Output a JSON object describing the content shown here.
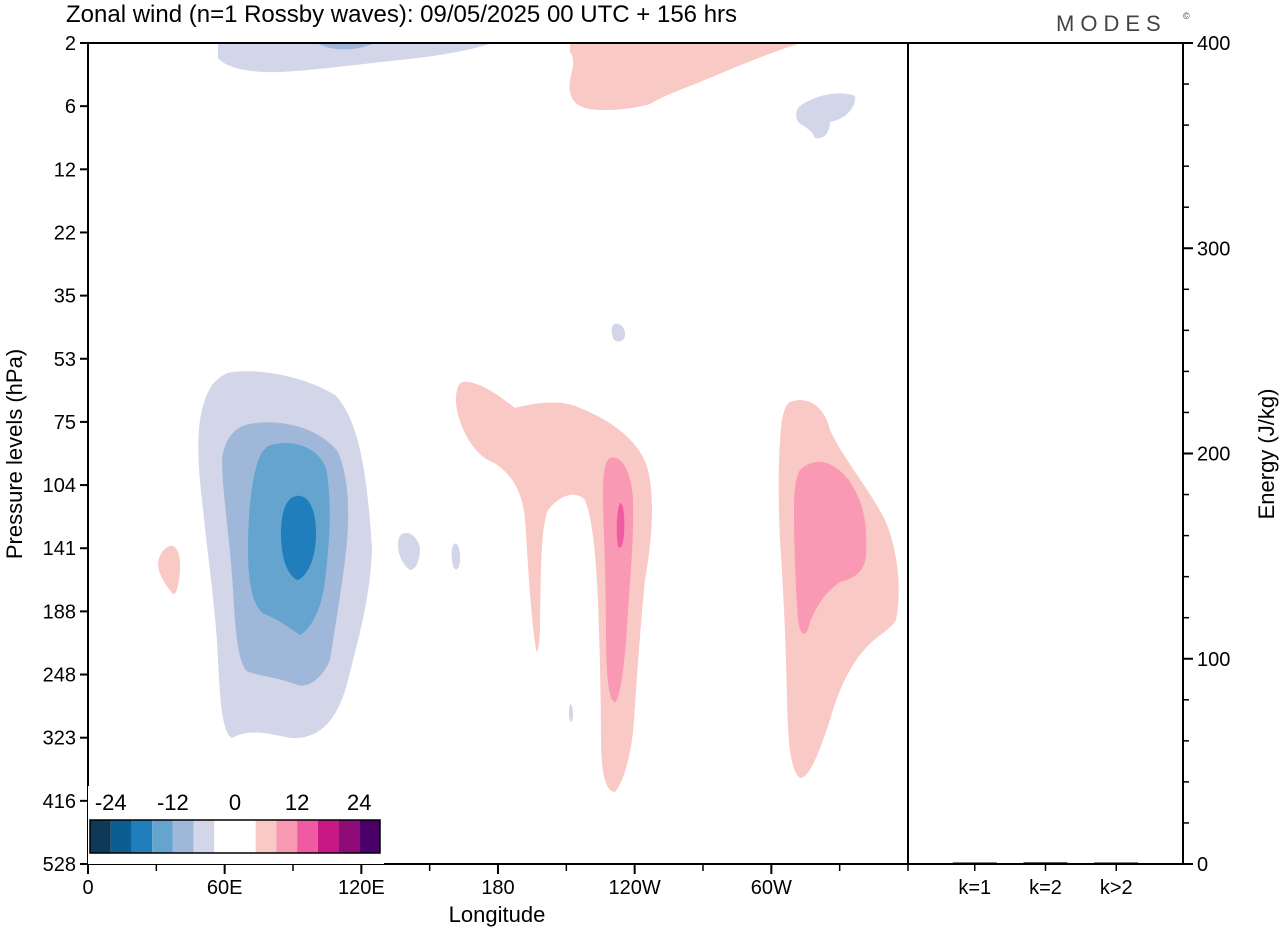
{
  "header": {
    "title": "Zonal wind (n=1 Rossby waves):  09/05/2025  00 UTC  + 156 hrs",
    "logo": "MODES",
    "logo_mark": "©"
  },
  "chart_data": [
    {
      "type": "heatmap",
      "title": "Zonal wind (n=1 Rossby waves):  09/05/2025  00 UTC  + 156 hrs",
      "xlabel": "Longitude",
      "ylabel": "Pressure levels (hPa)",
      "x_ticks": [
        "0",
        "60E",
        "120E",
        "180",
        "120W",
        "60W"
      ],
      "x_tick_values": [
        0,
        60,
        120,
        180,
        240,
        300
      ],
      "xlim": [
        0,
        360
      ],
      "y_ticks": [
        "2",
        "6",
        "12",
        "22",
        "35",
        "53",
        "75",
        "104",
        "141",
        "188",
        "248",
        "323",
        "416",
        "528"
      ],
      "y_scale": "model levels (non-linear)",
      "colorbar": {
        "ticks": [
          "-24",
          "-12",
          "0",
          "12",
          "24"
        ],
        "colors": [
          "#0e3a57",
          "#0b5e91",
          "#1f7ebb",
          "#64a4cf",
          "#9fb8da",
          "#d3d6e8",
          "#ffffff",
          "#ffffff",
          "#f9c9c6",
          "#f999b3",
          "#ef5aa2",
          "#c71886",
          "#8f0c78",
          "#4a0068"
        ],
        "placement": "bottom-left"
      },
      "features": [
        {
          "sign": "negative",
          "lon": 90,
          "level": "141",
          "peak": -20
        },
        {
          "sign": "positive",
          "lon": 232,
          "level": "141",
          "peak": 12
        },
        {
          "sign": "positive",
          "lon": 320,
          "level": "141",
          "peak": 10
        },
        {
          "sign": "positive",
          "lon": 215,
          "level": "2",
          "peak": 4
        },
        {
          "sign": "negative",
          "lon": 95,
          "level": "2",
          "peak": -8
        }
      ]
    },
    {
      "type": "bar",
      "ylabel": "Energy (J/kg)",
      "categories": [
        "k=1",
        "k=2",
        "k>2"
      ],
      "values": [
        0.5,
        0.8,
        0.6
      ],
      "ylim": [
        0,
        400
      ],
      "y_ticks": [
        "0",
        "100",
        "200",
        "300",
        "400"
      ],
      "color": "#000000"
    }
  ]
}
